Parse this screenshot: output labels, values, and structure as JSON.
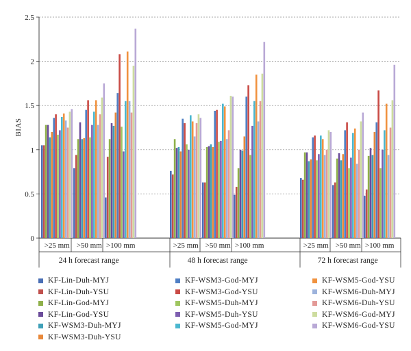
{
  "chart_data": {
    "type": "bar",
    "ylabel": "BIAS",
    "ylim": [
      0,
      2.5
    ],
    "yticks": [
      "0",
      "0.5",
      "1",
      "1.5",
      "2",
      "2.5"
    ],
    "thresholds": [
      ">25 mm",
      ">50 mm",
      ">100 mm"
    ],
    "forecast_ranges": [
      "24 h forecast range",
      "48 h forecast range",
      "72 h forecast range"
    ],
    "grid": true,
    "legend_position": "bottom",
    "series": [
      {
        "name": "KF-Lin-Duh-MYJ",
        "color": "#4a6fb5",
        "values": [
          [
            1.05,
            0.79,
            0.46
          ],
          [
            0.76,
            0.63,
            0.49
          ],
          [
            0.68,
            0.6,
            0.48
          ]
        ]
      },
      {
        "name": "KF-Lin-Duh-YSU",
        "color": "#c0504d",
        "values": [
          [
            1.05,
            0.94,
            0.92
          ],
          [
            0.72,
            0.63,
            0.58
          ],
          [
            0.66,
            0.63,
            0.55
          ]
        ]
      },
      {
        "name": "KF-Lin-God-MYJ",
        "color": "#8fb04a",
        "values": [
          [
            1.28,
            1.12,
            1.12
          ],
          [
            1.12,
            1.03,
            0.79
          ],
          [
            0.97,
            0.9,
            0.93
          ]
        ]
      },
      {
        "name": "KF-Lin-God-YSU",
        "color": "#6b4c9a",
        "values": [
          [
            1.28,
            1.31,
            1.3
          ],
          [
            1.02,
            1.04,
            1.0
          ],
          [
            0.97,
            0.96,
            1.02
          ]
        ]
      },
      {
        "name": "KF-WSM3-Duh-MYJ",
        "color": "#3fa0b8",
        "values": [
          [
            1.14,
            1.12,
            1.27
          ],
          [
            1.03,
            1.06,
            0.99
          ],
          [
            0.87,
            0.88,
            0.94
          ]
        ]
      },
      {
        "name": "KF-WSM3-Duh-YSU",
        "color": "#e8883a",
        "values": [
          [
            1.2,
            1.13,
            1.42
          ],
          [
            0.98,
            1.03,
            1.15
          ],
          [
            0.89,
            0.95,
            1.2
          ]
        ]
      },
      {
        "name": "KF-WSM3-God-MYJ",
        "color": "#4f7fc4",
        "values": [
          [
            1.36,
            1.45,
            1.64
          ],
          [
            1.35,
            1.44,
            1.6
          ],
          [
            1.14,
            1.22,
            1.31
          ]
        ]
      },
      {
        "name": "KF-WSM3-God-YSU",
        "color": "#c94a45",
        "values": [
          [
            1.4,
            1.56,
            2.08
          ],
          [
            1.3,
            1.45,
            1.73
          ],
          [
            1.16,
            1.31,
            1.67
          ]
        ]
      },
      {
        "name": "KF-WSM5-Duh-MYJ",
        "color": "#9fc660",
        "values": [
          [
            1.17,
            1.14,
            1.26
          ],
          [
            1.06,
            1.09,
            0.94
          ],
          [
            0.88,
            0.79,
            0.79
          ]
        ]
      },
      {
        "name": "KF-WSM5-Duh-YSU",
        "color": "#7e5fb0",
        "values": [
          [
            1.22,
            1.28,
            0.98
          ],
          [
            1.0,
            1.1,
            1.27
          ],
          [
            0.95,
            0.91,
            1.0
          ]
        ]
      },
      {
        "name": "KF-WSM5-God-MYJ",
        "color": "#4bb7cf",
        "values": [
          [
            1.37,
            1.43,
            1.55
          ],
          [
            1.39,
            1.52,
            1.55
          ],
          [
            1.16,
            1.19,
            1.22
          ]
        ]
      },
      {
        "name": "KF-WSM5-God-YSU",
        "color": "#f0923f",
        "values": [
          [
            1.41,
            1.56,
            2.11
          ],
          [
            1.32,
            1.49,
            1.85
          ],
          [
            1.12,
            1.24,
            1.52
          ]
        ]
      },
      {
        "name": "KF-WSM6-Duh-MYJ",
        "color": "#9db3dc",
        "values": [
          [
            1.33,
            1.28,
            1.55
          ],
          [
            1.15,
            1.12,
            1.32
          ],
          [
            0.94,
            0.84,
            0.94
          ]
        ]
      },
      {
        "name": "KF-WSM6-Duh-YSU",
        "color": "#e39a97",
        "values": [
          [
            1.25,
            1.4,
            1.42
          ],
          [
            1.3,
            1.22,
            1.55
          ],
          [
            1.0,
            1.0,
            1.25
          ]
        ]
      },
      {
        "name": "KF-WSM6-God-MYJ",
        "color": "#cddc9f",
        "values": [
          [
            1.43,
            1.59,
            1.95
          ],
          [
            1.4,
            1.61,
            1.86
          ],
          [
            1.22,
            1.32,
            1.56
          ]
        ]
      },
      {
        "name": "KF-WSM6-God-YSU",
        "color": "#b9a9d6",
        "values": [
          [
            1.46,
            1.75,
            2.37
          ],
          [
            1.36,
            1.6,
            2.22
          ],
          [
            1.2,
            1.42,
            1.96
          ]
        ]
      }
    ]
  }
}
